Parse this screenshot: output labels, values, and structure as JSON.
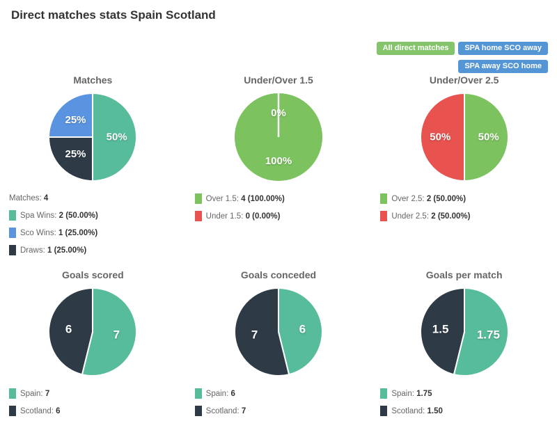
{
  "page": {
    "title": "Direct matches stats Spain Scotland"
  },
  "buttons": [
    {
      "label": "All direct matches",
      "color": "#84c46a"
    },
    {
      "label": "SPA home SCO away",
      "color": "#5495d6"
    },
    {
      "label": "SPA away SCO home",
      "color": "#5495d6"
    }
  ],
  "palette": {
    "teal": "#57bc9b",
    "dark_navy": "#2e3b47",
    "blue": "#5a94e1",
    "green": "#7cc35f",
    "red": "#e8534f",
    "label_white": "#ffffff"
  },
  "chart_data": [
    {
      "type": "pie",
      "title": "Matches",
      "slices": [
        {
          "name": "Spa Wins",
          "value": 2,
          "pct": 50,
          "display": "50%",
          "color": "#57bc9b"
        },
        {
          "name": "Draws",
          "value": 1,
          "pct": 25,
          "display": "25%",
          "color": "#2e3b47"
        },
        {
          "name": "Sco Wins",
          "value": 1,
          "pct": 25,
          "display": "25%",
          "color": "#5a94e1"
        }
      ],
      "legend_header": {
        "label": "Matches:",
        "value": "4"
      },
      "legend": [
        {
          "color": "#57bc9b",
          "label": "Spa Wins:",
          "value": "2 (50.00%)"
        },
        {
          "color": "#5a94e1",
          "label": "Sco Wins:",
          "value": "1 (25.00%)"
        },
        {
          "color": "#2e3b47",
          "label": "Draws:",
          "value": "1 (25.00%)"
        }
      ]
    },
    {
      "type": "pie",
      "title": "Under/Over 1.5",
      "slices": [
        {
          "name": "Over 1.5",
          "value": 4,
          "pct": 100,
          "display": "100%",
          "color": "#7cc35f"
        },
        {
          "name": "Under 1.5",
          "value": 0,
          "pct": 0,
          "display": "0%",
          "color": "#e8534f"
        }
      ],
      "legend": [
        {
          "color": "#7cc35f",
          "label": "Over 1.5:",
          "value": "4 (100.00%)"
        },
        {
          "color": "#e8534f",
          "label": "Under 1.5:",
          "value": "0 (0.00%)"
        }
      ]
    },
    {
      "type": "pie",
      "title": "Under/Over 2.5",
      "slices": [
        {
          "name": "Over 2.5",
          "value": 2,
          "pct": 50,
          "display": "50%",
          "color": "#7cc35f"
        },
        {
          "name": "Under 2.5",
          "value": 2,
          "pct": 50,
          "display": "50%",
          "color": "#e8534f"
        }
      ],
      "legend": [
        {
          "color": "#7cc35f",
          "label": "Over 2.5:",
          "value": "2 (50.00%)"
        },
        {
          "color": "#e8534f",
          "label": "Under 2.5:",
          "value": "2 (50.00%)"
        }
      ]
    },
    {
      "type": "pie",
      "title": "Goals scored",
      "slices": [
        {
          "name": "Spain",
          "value": 7,
          "display": "7",
          "color": "#57bc9b"
        },
        {
          "name": "Scotland",
          "value": 6,
          "display": "6",
          "color": "#2e3b47"
        }
      ],
      "legend": [
        {
          "color": "#57bc9b",
          "label": "Spain:",
          "value": "7"
        },
        {
          "color": "#2e3b47",
          "label": "Scotland:",
          "value": "6"
        }
      ]
    },
    {
      "type": "pie",
      "title": "Goals conceded",
      "slices": [
        {
          "name": "Spain",
          "value": 6,
          "display": "6",
          "color": "#57bc9b"
        },
        {
          "name": "Scotland",
          "value": 7,
          "display": "7",
          "color": "#2e3b47"
        }
      ],
      "legend": [
        {
          "color": "#57bc9b",
          "label": "Spain:",
          "value": "6"
        },
        {
          "color": "#2e3b47",
          "label": "Scotland:",
          "value": "7"
        }
      ]
    },
    {
      "type": "pie",
      "title": "Goals per match",
      "slices": [
        {
          "name": "Spain",
          "value": 1.75,
          "display": "1.75",
          "color": "#57bc9b"
        },
        {
          "name": "Scotland",
          "value": 1.5,
          "display": "1.5",
          "color": "#2e3b47"
        }
      ],
      "legend": [
        {
          "color": "#57bc9b",
          "label": "Spain:",
          "value": "1.75"
        },
        {
          "color": "#2e3b47",
          "label": "Scotland:",
          "value": "1.50"
        }
      ]
    }
  ]
}
